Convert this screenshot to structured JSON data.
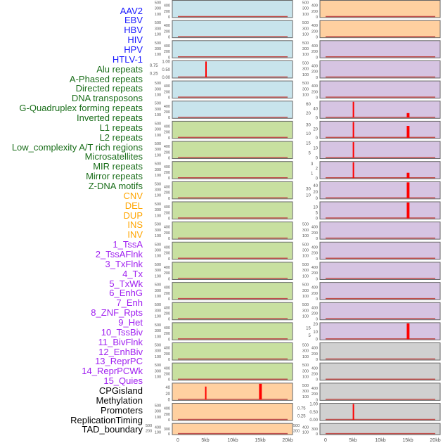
{
  "colors": {
    "virus": "#1a1aff",
    "repeat": "#1a6e1a",
    "cnv": "#ffa500",
    "chromatin": "#a020f0",
    "other": "#000000",
    "bar": "#ff0000",
    "baseline": "#c0504d",
    "blue": "#c8e4ec",
    "green": "#c8e0a0",
    "orange": "#ffd0a0",
    "purple": "#d6c4e2",
    "gray": "#d0d0d0"
  },
  "labels": [
    {
      "t": "AAV2",
      "g": "virus"
    },
    {
      "t": "EBV",
      "g": "virus"
    },
    {
      "t": "HBV",
      "g": "virus"
    },
    {
      "t": "HIV",
      "g": "virus"
    },
    {
      "t": "HPV",
      "g": "virus"
    },
    {
      "t": "HTLV-1",
      "g": "virus"
    },
    {
      "t": "Alu repeats",
      "g": "repeat"
    },
    {
      "t": "A-Phased repeats",
      "g": "repeat"
    },
    {
      "t": "Directed repeats",
      "g": "repeat"
    },
    {
      "t": "DNA transposons",
      "g": "repeat"
    },
    {
      "t": "G-Quadruplex forming repeats",
      "g": "repeat"
    },
    {
      "t": "Inverted repeats",
      "g": "repeat"
    },
    {
      "t": "L1 repeats",
      "g": "repeat"
    },
    {
      "t": "L2 repeats",
      "g": "repeat"
    },
    {
      "t": "Low_complexity A/T rich regions",
      "g": "repeat"
    },
    {
      "t": "Microsatellites",
      "g": "repeat"
    },
    {
      "t": "MIR repeats",
      "g": "repeat"
    },
    {
      "t": "Mirror repeats",
      "g": "repeat"
    },
    {
      "t": "Z-DNA motifs",
      "g": "repeat"
    },
    {
      "t": "CNV",
      "g": "cnv"
    },
    {
      "t": "DEL",
      "g": "cnv"
    },
    {
      "t": "DUP",
      "g": "cnv"
    },
    {
      "t": "INS",
      "g": "cnv"
    },
    {
      "t": "INV",
      "g": "cnv"
    },
    {
      "t": "1_TssA",
      "g": "chromatin"
    },
    {
      "t": "2_TssAFlnk",
      "g": "chromatin"
    },
    {
      "t": "3_TxFlnk",
      "g": "chromatin"
    },
    {
      "t": "4_Tx",
      "g": "chromatin"
    },
    {
      "t": "5_TxWk",
      "g": "chromatin"
    },
    {
      "t": "6_EnhG",
      "g": "chromatin"
    },
    {
      "t": "7_Enh",
      "g": "chromatin"
    },
    {
      "t": "8_ZNF_Rpts",
      "g": "chromatin"
    },
    {
      "t": "9_Het",
      "g": "chromatin"
    },
    {
      "t": "10_TssBiv",
      "g": "chromatin"
    },
    {
      "t": "11_BivFlnk",
      "g": "chromatin"
    },
    {
      "t": "12_EnhBiv",
      "g": "chromatin"
    },
    {
      "t": "13_ReprPC",
      "g": "chromatin"
    },
    {
      "t": "14_ReprPCWk",
      "g": "chromatin"
    },
    {
      "t": "15_Quies",
      "g": "chromatin"
    },
    {
      "t": "CPGisland",
      "g": "other"
    },
    {
      "t": "Methylation",
      "g": "other"
    },
    {
      "t": "Promoters",
      "g": "other"
    },
    {
      "t": "ReplicationTiming",
      "g": "other"
    },
    {
      "t": "TAD_boundary",
      "g": "other"
    }
  ],
  "chart_data": {
    "type": "bar",
    "xticks": [
      "0",
      "5kb",
      "10kb",
      "15kb",
      "20kb"
    ],
    "xtick_values": [
      0,
      5,
      10,
      15,
      20
    ],
    "xlim": [
      0,
      20
    ],
    "columns": [
      {
        "panels": [
          {
            "bg": "blue",
            "yt": [
              "0",
              "100",
              "200",
              "300",
              "400",
              "500"
            ],
            "ymax": 550,
            "bars": []
          },
          {
            "bg": "blue",
            "yt": [
              "0",
              "100",
              "200",
              "300",
              "400",
              "500"
            ],
            "ymax": 550,
            "bars": []
          },
          {
            "bg": "blue",
            "yt": [
              "0",
              "100",
              "200",
              "300",
              "400",
              "500"
            ],
            "ymax": 550,
            "bars": []
          },
          {
            "bg": "blue",
            "yt": [
              "0.00",
              "0.25",
              "0.50",
              "0.75",
              "1.00"
            ],
            "ymax": 1.0,
            "bars": [
              [
                5,
                5.15,
                1.0
              ]
            ]
          },
          {
            "bg": "blue",
            "yt": [
              "0",
              "100",
              "200",
              "300",
              "400",
              "500"
            ],
            "ymax": 550,
            "bars": []
          },
          {
            "bg": "blue",
            "yt": [
              "0",
              "100",
              "200",
              "300",
              "400",
              "500"
            ],
            "ymax": 550,
            "bars": []
          },
          {
            "bg": "green",
            "yt": [
              "0",
              "100",
              "200",
              "300",
              "400",
              "500"
            ],
            "ymax": 550,
            "bars": []
          },
          {
            "bg": "green",
            "yt": [
              "0",
              "100",
              "200",
              "300",
              "400",
              "500"
            ],
            "ymax": 550,
            "bars": []
          },
          {
            "bg": "green",
            "yt": [
              "0",
              "100",
              "200",
              "300",
              "400",
              "500"
            ],
            "ymax": 550,
            "bars": []
          },
          {
            "bg": "green",
            "yt": [
              "0",
              "100",
              "200",
              "300",
              "400",
              "500"
            ],
            "ymax": 550,
            "bars": []
          },
          {
            "bg": "green",
            "yt": [
              "0",
              "100",
              "200",
              "300",
              "400",
              "500"
            ],
            "ymax": 550,
            "bars": []
          },
          {
            "bg": "green",
            "yt": [
              "0",
              "100",
              "200",
              "300",
              "400",
              "500"
            ],
            "ymax": 550,
            "bars": []
          },
          {
            "bg": "green",
            "yt": [
              "0",
              "100",
              "200",
              "300",
              "400",
              "500"
            ],
            "ymax": 550,
            "bars": []
          },
          {
            "bg": "green",
            "yt": [
              "0",
              "100",
              "200",
              "300",
              "400",
              "500"
            ],
            "ymax": 550,
            "bars": []
          },
          {
            "bg": "green",
            "yt": [
              "0",
              "100",
              "200",
              "300",
              "400",
              "500"
            ],
            "ymax": 550,
            "bars": []
          },
          {
            "bg": "green",
            "yt": [
              "0",
              "100",
              "200",
              "300",
              "400",
              "500"
            ],
            "ymax": 550,
            "bars": []
          },
          {
            "bg": "green",
            "yt": [
              "0",
              "100",
              "200",
              "300",
              "400",
              "500"
            ],
            "ymax": 550,
            "bars": []
          },
          {
            "bg": "green",
            "yt": [
              "0",
              "100",
              "200",
              "300",
              "400",
              "500"
            ],
            "ymax": 550,
            "bars": []
          },
          {
            "bg": "green",
            "yt": [
              "0",
              "100",
              "200",
              "300",
              "400",
              "500"
            ],
            "ymax": 550,
            "bars": []
          },
          {
            "bg": "orange",
            "yt": [
              "0",
              "20",
              "40"
            ],
            "ymax": 52,
            "bars": [
              [
                4.95,
                5.2,
                43
              ],
              [
                14.8,
                15.3,
                52
              ]
            ]
          },
          {
            "bg": "orange",
            "yt": [
              "0",
              "100",
              "200",
              "300",
              "400",
              "500"
            ],
            "ymax": 550,
            "bars": []
          },
          {
            "bg": "orange",
            "yt": [
              "0",
              "100",
              "200",
              "300",
              "400",
              "500"
            ],
            "ymax": 550,
            "bars": [],
            "short": true
          }
        ]
      },
      {
        "panels": [
          {
            "bg": "orange",
            "yt": [
              "0",
              "100",
              "200",
              "300",
              "400",
              "500"
            ],
            "ymax": 550,
            "bars": []
          },
          {
            "bg": "orange",
            "yt": [
              "0",
              "100",
              "200",
              "300",
              "400",
              "500"
            ],
            "ymax": 550,
            "bars": []
          },
          {
            "bg": "purple",
            "yt": [
              "0",
              "100",
              "200",
              "300",
              "400",
              "500"
            ],
            "ymax": 550,
            "bars": []
          },
          {
            "bg": "purple",
            "yt": [
              "0",
              "100",
              "200",
              "300",
              "400",
              "500"
            ],
            "ymax": 550,
            "bars": []
          },
          {
            "bg": "purple",
            "yt": [
              "0",
              "100",
              "200",
              "300",
              "400",
              "500"
            ],
            "ymax": 550,
            "bars": []
          },
          {
            "bg": "purple",
            "yt": [
              "0",
              "20",
              "40",
              "60"
            ],
            "ymax": 70,
            "bars": [
              [
                4.95,
                5.15,
                70
              ],
              [
                14.8,
                15.3,
                20
              ]
            ]
          },
          {
            "bg": "purple",
            "yt": [
              "0",
              "10",
              "20",
              "30"
            ],
            "ymax": 36,
            "bars": [
              [
                4.95,
                5.15,
                36
              ],
              [
                14.8,
                15.3,
                27
              ]
            ]
          },
          {
            "bg": "purple",
            "yt": [
              "0",
              "5",
              "10",
              "15"
            ],
            "ymax": 16,
            "bars": [
              [
                4.95,
                5.15,
                16
              ]
            ]
          },
          {
            "bg": "purple",
            "yt": [
              "0",
              "1",
              "2",
              "3"
            ],
            "ymax": 3.3,
            "bars": [
              [
                4.95,
                5.15,
                3.3
              ],
              [
                14.8,
                15.3,
                1.1
              ]
            ]
          },
          {
            "bg": "purple",
            "yt": [
              "0",
              "10",
              "20",
              "30",
              "40"
            ],
            "ymax": 50,
            "bars": [
              [
                14.8,
                15.3,
                50
              ]
            ]
          },
          {
            "bg": "purple",
            "yt": [
              "0",
              "5",
              "10"
            ],
            "ymax": 14,
            "bars": [
              [
                14.8,
                15.3,
                14
              ]
            ]
          },
          {
            "bg": "purple",
            "yt": [
              "0",
              "100",
              "200",
              "300",
              "400",
              "500"
            ],
            "ymax": 550,
            "bars": []
          },
          {
            "bg": "purple",
            "yt": [
              "0",
              "100",
              "200",
              "300",
              "400",
              "500"
            ],
            "ymax": 550,
            "bars": []
          },
          {
            "bg": "purple",
            "yt": [
              "0",
              "100",
              "200",
              "300",
              "400",
              "500"
            ],
            "ymax": 550,
            "bars": []
          },
          {
            "bg": "purple",
            "yt": [
              "0",
              "100",
              "200",
              "300",
              "400",
              "500"
            ],
            "ymax": 550,
            "bars": []
          },
          {
            "bg": "purple",
            "yt": [
              "0",
              "100",
              "200",
              "300",
              "400",
              "500"
            ],
            "ymax": 550,
            "bars": []
          },
          {
            "bg": "purple",
            "yt": [
              "0",
              "5",
              "10",
              "15",
              "20"
            ],
            "ymax": 21,
            "bars": [
              [
                14.8,
                15.3,
                21
              ]
            ]
          },
          {
            "bg": "gray",
            "yt": [
              "0",
              "100",
              "200",
              "300",
              "400",
              "500"
            ],
            "ymax": 550,
            "bars": []
          },
          {
            "bg": "gray",
            "yt": [
              "0",
              "100",
              "200",
              "300",
              "400",
              "500"
            ],
            "ymax": 550,
            "bars": []
          },
          {
            "bg": "gray",
            "yt": [
              "0",
              "100",
              "200",
              "300",
              "400",
              "500"
            ],
            "ymax": 550,
            "bars": []
          },
          {
            "bg": "gray",
            "yt": [
              "0.00",
              "0.25",
              "0.50",
              "0.75",
              "1.00"
            ],
            "ymax": 1.0,
            "bars": [
              [
                4.95,
                5.15,
                1.0
              ]
            ]
          },
          {
            "bg": "gray",
            "yt": [
              "0",
              "100",
              "200",
              "300",
              "400",
              "500"
            ],
            "ymax": 550,
            "bars": [],
            "short": true
          }
        ]
      }
    ]
  }
}
